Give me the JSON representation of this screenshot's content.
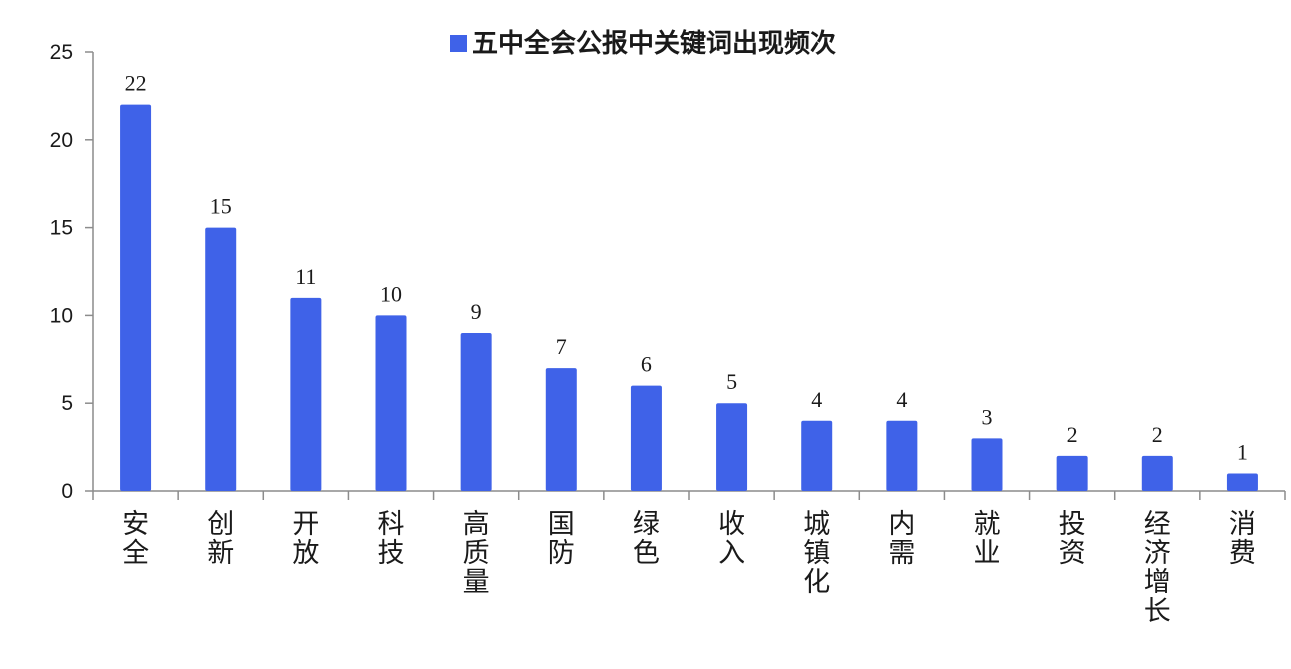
{
  "chart_data": {
    "type": "bar",
    "legend_position": "top-center",
    "grid": false,
    "categories": [
      "安全",
      "创新",
      "开放",
      "科技",
      "高质量",
      "国防",
      "绿色",
      "收入",
      "城镇化",
      "内需",
      "就业",
      "投资",
      "经济增长",
      "消费"
    ],
    "series": [
      {
        "name": "五中全会公报中关键词出现频次",
        "color": "#3f62e8",
        "values": [
          22,
          15,
          11,
          10,
          9,
          7,
          6,
          5,
          4,
          4,
          3,
          2,
          2,
          1
        ]
      }
    ],
    "ylim": [
      0,
      25
    ],
    "yticks": [
      0,
      5,
      10,
      15,
      20,
      25
    ],
    "data_labels": true
  }
}
